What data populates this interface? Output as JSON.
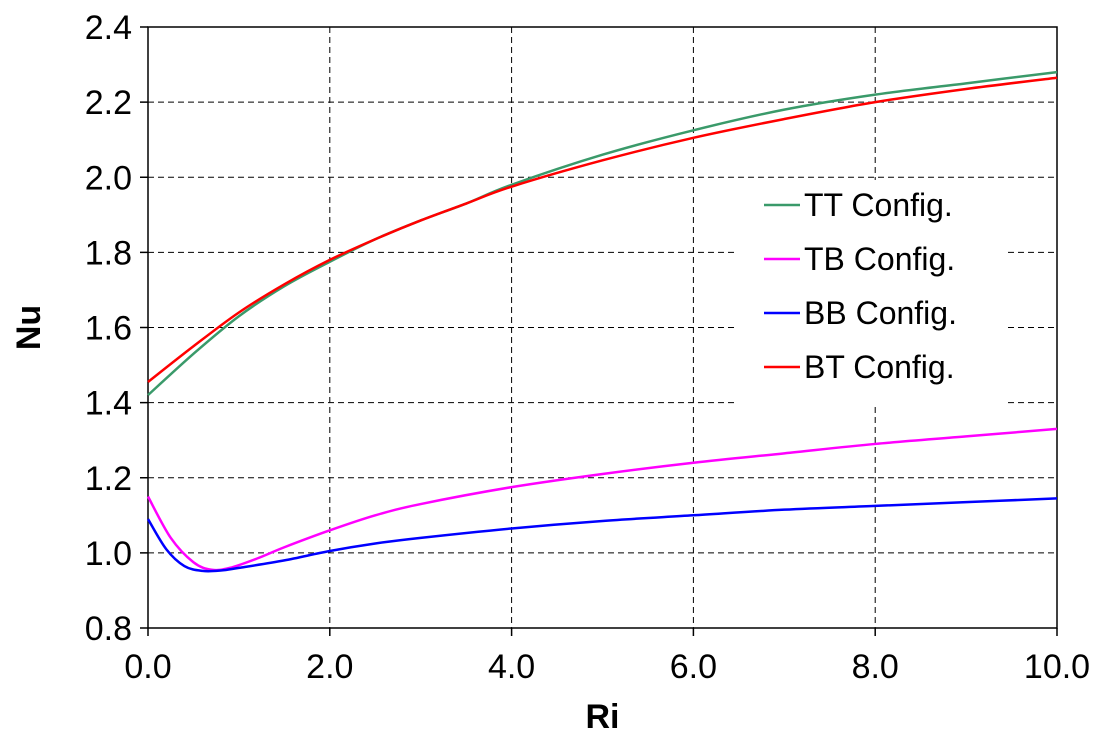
{
  "chart_data": {
    "type": "line",
    "title": "",
    "xlabel": "Ri",
    "ylabel": "Nu",
    "xlim": [
      0,
      10
    ],
    "ylim": [
      0.8,
      2.4
    ],
    "xticks": [
      "0.0",
      "2.0",
      "4.0",
      "6.0",
      "8.0",
      "10.0"
    ],
    "yticks": [
      "0.8",
      "1.0",
      "1.2",
      "1.4",
      "1.6",
      "1.8",
      "2.0",
      "2.2",
      "2.4"
    ],
    "grid": true,
    "legend_position": "center-right",
    "series": [
      {
        "name": "TT Config.",
        "color": "#3a9a6a",
        "x": [
          0,
          0.5,
          1,
          1.5,
          2,
          2.5,
          3,
          3.5,
          4,
          5,
          6,
          7,
          8,
          9,
          10
        ],
        "y": [
          1.42,
          1.53,
          1.63,
          1.71,
          1.775,
          1.835,
          1.885,
          1.93,
          1.98,
          2.06,
          2.125,
          2.18,
          2.22,
          2.25,
          2.28
        ]
      },
      {
        "name": "TB Config.",
        "color": "#ff00ff",
        "x": [
          0,
          0.25,
          0.5,
          0.7,
          0.9,
          1.2,
          1.5,
          2,
          2.5,
          3,
          4,
          5,
          6,
          7,
          8,
          9,
          10
        ],
        "y": [
          1.15,
          1.04,
          0.975,
          0.955,
          0.96,
          0.985,
          1.015,
          1.06,
          1.1,
          1.13,
          1.175,
          1.21,
          1.24,
          1.265,
          1.29,
          1.31,
          1.33
        ]
      },
      {
        "name": "BB Config.",
        "color": "#0000ff",
        "x": [
          0,
          0.2,
          0.4,
          0.6,
          0.8,
          1,
          1.5,
          2,
          2.5,
          3,
          4,
          5,
          6,
          7,
          8,
          9,
          10
        ],
        "y": [
          1.09,
          1.01,
          0.965,
          0.952,
          0.953,
          0.96,
          0.98,
          1.005,
          1.025,
          1.04,
          1.065,
          1.085,
          1.1,
          1.115,
          1.125,
          1.135,
          1.145
        ]
      },
      {
        "name": "BT Config.",
        "color": "#ff0000",
        "x": [
          0,
          0.5,
          1,
          1.5,
          2,
          2.5,
          3,
          3.5,
          4,
          5,
          6,
          7,
          8,
          9,
          10
        ],
        "y": [
          1.455,
          1.55,
          1.64,
          1.715,
          1.78,
          1.835,
          1.885,
          1.93,
          1.975,
          2.045,
          2.105,
          2.155,
          2.2,
          2.235,
          2.265
        ]
      }
    ]
  }
}
